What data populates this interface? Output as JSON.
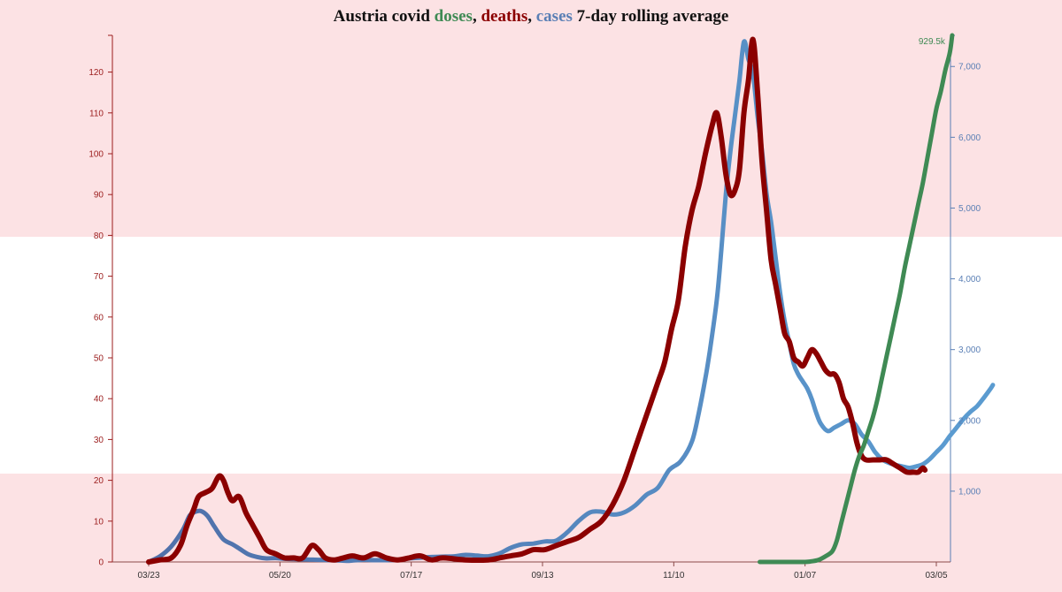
{
  "title": {
    "prefix": "Austria covid ",
    "doses": "doses",
    "sep1": ", ",
    "deaths": "deaths",
    "sep2": ", ",
    "cases": "cases",
    "suffix": " 7-day rolling average"
  },
  "colors": {
    "doses": "#3f8a54",
    "deaths": "#8b0000",
    "cases_start": "#4f6ea8",
    "cases_end": "#5b9bd0",
    "left_axis": "#9b1c1c",
    "right_axis": "#5a7fb5",
    "flag_band": "#fce2e4"
  },
  "chart_data": {
    "type": "line",
    "x_ticks": [
      "03/23",
      "05/20",
      "07/17",
      "09/13",
      "11/10",
      "01/07",
      "03/05"
    ],
    "y_left": {
      "ticks": [
        0,
        10,
        20,
        30,
        40,
        50,
        60,
        70,
        80,
        90,
        100,
        110,
        120
      ],
      "range": [
        0,
        129
      ]
    },
    "y_right": {
      "ticks": [
        "1,000",
        "2,000",
        "3,000",
        "4,000",
        "5,000",
        "6,000",
        "7,000"
      ],
      "range": [
        0,
        7440
      ]
    },
    "doses_end_label": "929.5k",
    "series": [
      {
        "name": "cases",
        "axis": "right",
        "points": [
          [
            0,
            0
          ],
          [
            5,
            80
          ],
          [
            10,
            220
          ],
          [
            15,
            450
          ],
          [
            18,
            650
          ],
          [
            20,
            700
          ],
          [
            23,
            720
          ],
          [
            26,
            650
          ],
          [
            29,
            500
          ],
          [
            33,
            320
          ],
          [
            37,
            250
          ],
          [
            40,
            190
          ],
          [
            44,
            110
          ],
          [
            48,
            70
          ],
          [
            52,
            50
          ],
          [
            56,
            55
          ],
          [
            60,
            45
          ],
          [
            64,
            40
          ],
          [
            70,
            35
          ],
          [
            75,
            30
          ],
          [
            80,
            25
          ],
          [
            85,
            20
          ],
          [
            88,
            15
          ],
          [
            90,
            20
          ],
          [
            95,
            30
          ],
          [
            100,
            25
          ],
          [
            110,
            30
          ],
          [
            115,
            50
          ],
          [
            120,
            60
          ],
          [
            125,
            70
          ],
          [
            130,
            75
          ],
          [
            135,
            80
          ],
          [
            140,
            100
          ],
          [
            145,
            90
          ],
          [
            150,
            80
          ],
          [
            155,
            120
          ],
          [
            160,
            200
          ],
          [
            165,
            250
          ],
          [
            170,
            260
          ],
          [
            175,
            290
          ],
          [
            180,
            300
          ],
          [
            185,
            420
          ],
          [
            190,
            580
          ],
          [
            195,
            700
          ],
          [
            200,
            710
          ],
          [
            205,
            670
          ],
          [
            210,
            700
          ],
          [
            215,
            800
          ],
          [
            220,
            950
          ],
          [
            225,
            1050
          ],
          [
            230,
            1300
          ],
          [
            235,
            1420
          ],
          [
            240,
            1700
          ],
          [
            243,
            2100
          ],
          [
            246,
            2600
          ],
          [
            248,
            3000
          ],
          [
            251,
            3700
          ],
          [
            253,
            4400
          ],
          [
            255,
            5200
          ],
          [
            257,
            5800
          ],
          [
            259,
            6300
          ],
          [
            261,
            6800
          ],
          [
            263,
            7350
          ],
          [
            265,
            7100
          ],
          [
            267,
            6900
          ],
          [
            269,
            6300
          ],
          [
            271,
            5800
          ],
          [
            273,
            5200
          ],
          [
            275,
            4800
          ],
          [
            277,
            4300
          ],
          [
            279,
            3800
          ],
          [
            281,
            3400
          ],
          [
            283,
            3100
          ],
          [
            285,
            2800
          ],
          [
            287,
            2650
          ],
          [
            289,
            2550
          ],
          [
            291,
            2450
          ],
          [
            293,
            2300
          ],
          [
            295,
            2100
          ],
          [
            297,
            1950
          ],
          [
            300,
            1850
          ],
          [
            303,
            1900
          ],
          [
            306,
            1950
          ],
          [
            309,
            2000
          ],
          [
            312,
            1950
          ],
          [
            315,
            1800
          ],
          [
            318,
            1700
          ],
          [
            321,
            1550
          ],
          [
            324,
            1450
          ],
          [
            327,
            1400
          ],
          [
            330,
            1370
          ],
          [
            333,
            1350
          ],
          [
            336,
            1330
          ],
          [
            339,
            1350
          ],
          [
            342,
            1380
          ],
          [
            345,
            1450
          ],
          [
            348,
            1550
          ],
          [
            351,
            1650
          ],
          [
            354,
            1780
          ],
          [
            357,
            1900
          ],
          [
            360,
            2020
          ],
          [
            363,
            2120
          ],
          [
            366,
            2200
          ],
          [
            369,
            2320
          ],
          [
            372,
            2450
          ],
          [
            373,
            2500
          ]
        ]
      },
      {
        "name": "deaths",
        "axis": "left",
        "points": [
          [
            0,
            0
          ],
          [
            5,
            0.5
          ],
          [
            10,
            1
          ],
          [
            14,
            4
          ],
          [
            17,
            9
          ],
          [
            20,
            13
          ],
          [
            22,
            16
          ],
          [
            25,
            17
          ],
          [
            28,
            18
          ],
          [
            31,
            21
          ],
          [
            33,
            20
          ],
          [
            35,
            17
          ],
          [
            37,
            15
          ],
          [
            40,
            16
          ],
          [
            43,
            12
          ],
          [
            46,
            9
          ],
          [
            49,
            6
          ],
          [
            52,
            3
          ],
          [
            56,
            2
          ],
          [
            60,
            1
          ],
          [
            64,
            1
          ],
          [
            68,
            1
          ],
          [
            72,
            4
          ],
          [
            75,
            3
          ],
          [
            78,
            1
          ],
          [
            82,
            0.5
          ],
          [
            86,
            1
          ],
          [
            90,
            1.5
          ],
          [
            95,
            1
          ],
          [
            100,
            2
          ],
          [
            105,
            1
          ],
          [
            110,
            0.5
          ],
          [
            115,
            1
          ],
          [
            120,
            1.5
          ],
          [
            125,
            0.5
          ],
          [
            130,
            1
          ],
          [
            140,
            0.5
          ],
          [
            150,
            0.5
          ],
          [
            155,
            1
          ],
          [
            160,
            1.5
          ],
          [
            165,
            2
          ],
          [
            170,
            3
          ],
          [
            175,
            3
          ],
          [
            180,
            4
          ],
          [
            185,
            5
          ],
          [
            190,
            6
          ],
          [
            195,
            8
          ],
          [
            200,
            10
          ],
          [
            205,
            14
          ],
          [
            210,
            20
          ],
          [
            215,
            28
          ],
          [
            220,
            36
          ],
          [
            225,
            44
          ],
          [
            228,
            49
          ],
          [
            231,
            57
          ],
          [
            234,
            64
          ],
          [
            237,
            77
          ],
          [
            240,
            86
          ],
          [
            243,
            92
          ],
          [
            246,
            100
          ],
          [
            249,
            107
          ],
          [
            251,
            110
          ],
          [
            253,
            104
          ],
          [
            255,
            95
          ],
          [
            257,
            90
          ],
          [
            259,
            91
          ],
          [
            261,
            96
          ],
          [
            263,
            110
          ],
          [
            265,
            118
          ],
          [
            267,
            128
          ],
          [
            269,
            115
          ],
          [
            271,
            98
          ],
          [
            273,
            86
          ],
          [
            275,
            74
          ],
          [
            277,
            68
          ],
          [
            279,
            62
          ],
          [
            281,
            56
          ],
          [
            283,
            54
          ],
          [
            285,
            50
          ],
          [
            287,
            49
          ],
          [
            289,
            48
          ],
          [
            291,
            50
          ],
          [
            293,
            52
          ],
          [
            295,
            51
          ],
          [
            297,
            49
          ],
          [
            299,
            47
          ],
          [
            301,
            46
          ],
          [
            303,
            46
          ],
          [
            305,
            44
          ],
          [
            307,
            40
          ],
          [
            309,
            38
          ],
          [
            311,
            34
          ],
          [
            313,
            29
          ],
          [
            315,
            26
          ],
          [
            317,
            25
          ],
          [
            320,
            25
          ],
          [
            323,
            25
          ],
          [
            326,
            25
          ],
          [
            329,
            24
          ],
          [
            332,
            23
          ],
          [
            335,
            22
          ],
          [
            338,
            22
          ],
          [
            340,
            22
          ],
          [
            342,
            23
          ],
          [
            343,
            22.5
          ]
        ]
      },
      {
        "name": "doses",
        "axis": "right",
        "points": [
          [
            270,
            0
          ],
          [
            280,
            0
          ],
          [
            290,
            0
          ],
          [
            293,
            10
          ],
          [
            296,
            30
          ],
          [
            299,
            80
          ],
          [
            302,
            150
          ],
          [
            304,
            300
          ],
          [
            306,
            550
          ],
          [
            308,
            800
          ],
          [
            310,
            1050
          ],
          [
            312,
            1300
          ],
          [
            314,
            1500
          ],
          [
            316,
            1650
          ],
          [
            318,
            1850
          ],
          [
            320,
            2050
          ],
          [
            322,
            2300
          ],
          [
            324,
            2600
          ],
          [
            326,
            2900
          ],
          [
            328,
            3200
          ],
          [
            330,
            3500
          ],
          [
            332,
            3800
          ],
          [
            334,
            4150
          ],
          [
            336,
            4450
          ],
          [
            338,
            4750
          ],
          [
            340,
            5050
          ],
          [
            342,
            5350
          ],
          [
            344,
            5700
          ],
          [
            346,
            6050
          ],
          [
            348,
            6400
          ],
          [
            350,
            6650
          ],
          [
            352,
            6950
          ],
          [
            354,
            7200
          ],
          [
            355,
            7440
          ]
        ]
      }
    ]
  }
}
